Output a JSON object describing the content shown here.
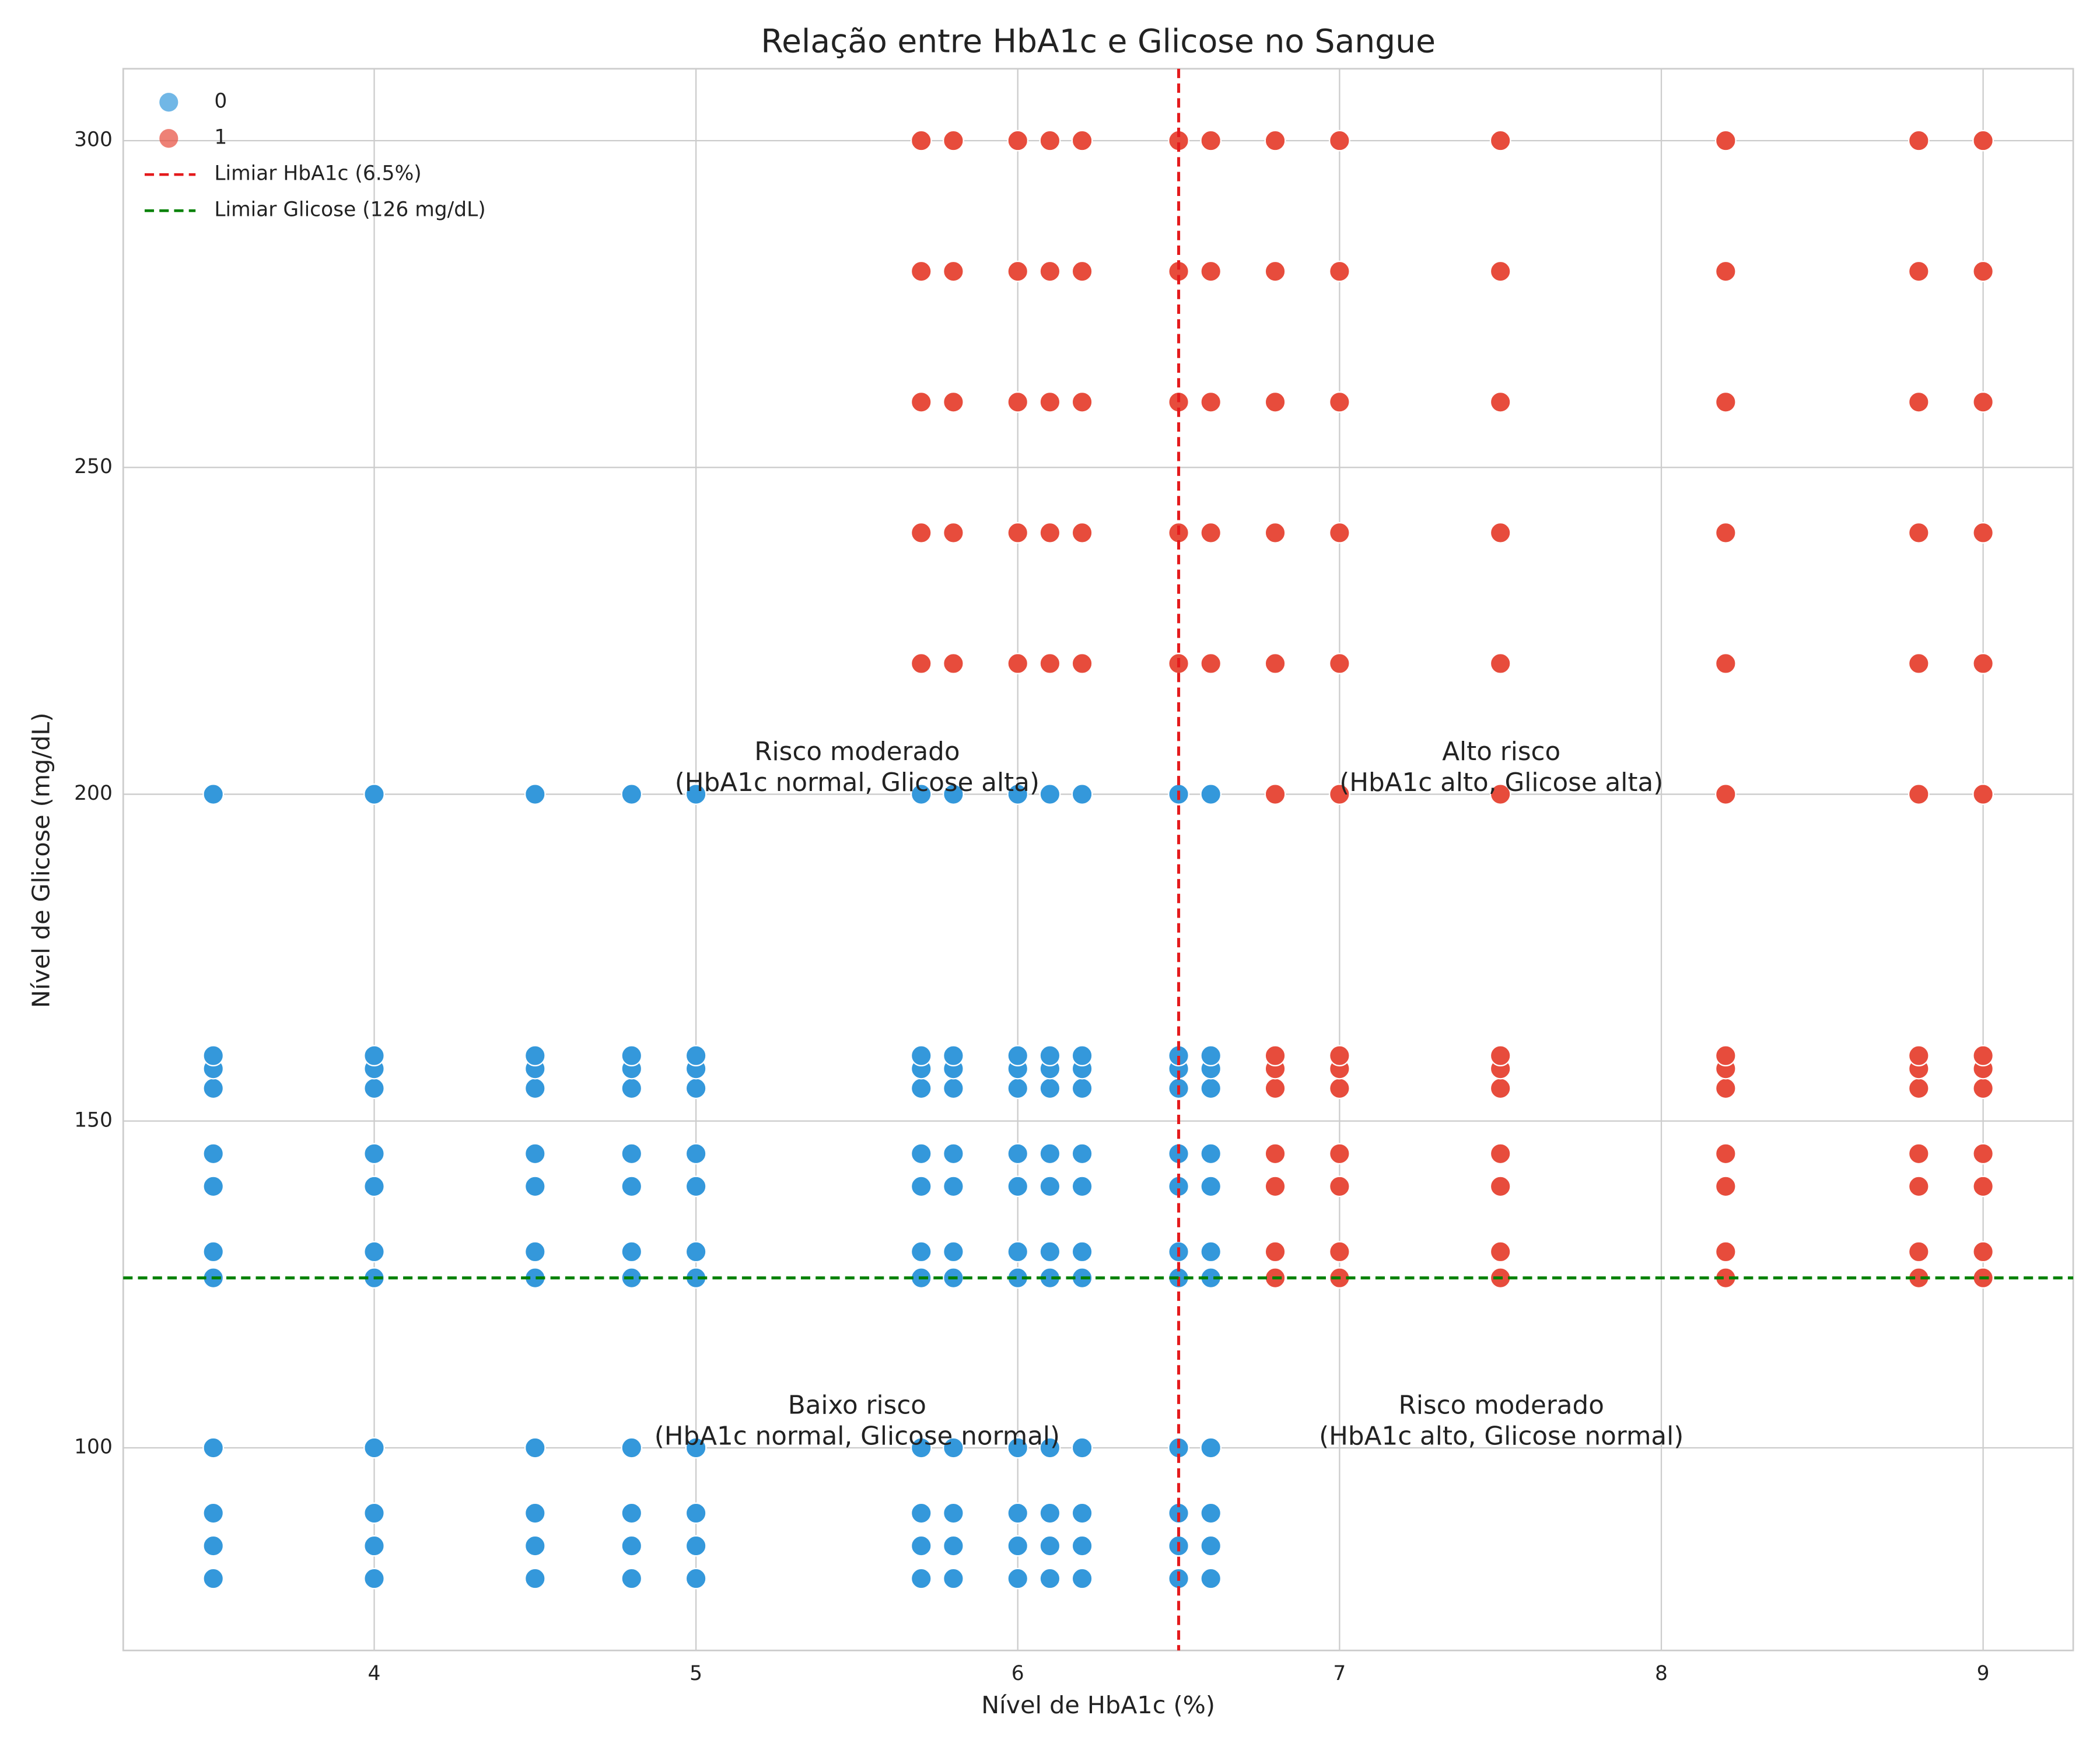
{
  "chart_data": {
    "type": "scatter",
    "title": "Relação entre HbA1c e Glicose no Sangue",
    "xlabel": "Nível de HbA1c (%)",
    "ylabel": "Nível de Glicose (mg/dL)",
    "xlim": [
      3.22,
      9.28
    ],
    "ylim": [
      69,
      311
    ],
    "xticks": [
      4,
      5,
      6,
      7,
      8,
      9
    ],
    "yticks": [
      100,
      150,
      200,
      250,
      300
    ],
    "grid": true,
    "legend": "upper left",
    "series": [
      {
        "name": "0",
        "color": "#3498db",
        "x": [
          3.5,
          4,
          4.5,
          4.8,
          5,
          5.7,
          5.8,
          6,
          6.1,
          6.2,
          6.5,
          6.6,
          3.5,
          4,
          4.5,
          4.8,
          5,
          5.7,
          5.8,
          6,
          6.1,
          6.2,
          6.5,
          6.6,
          3.5,
          4,
          4.5,
          4.8,
          5,
          5.7,
          5.8,
          6,
          6.1,
          6.2,
          6.5,
          6.6,
          3.5,
          4,
          4.5,
          4.8,
          5,
          5.7,
          5.8,
          6,
          6.1,
          6.2,
          6.5,
          6.6,
          3.5,
          4,
          4.5,
          4.8,
          5,
          5.7,
          5.8,
          6,
          6.1,
          6.2,
          6.5,
          6.6,
          3.5,
          4,
          4.5,
          4.8,
          5,
          5.7,
          5.8,
          6,
          6.1,
          6.2,
          6.5,
          6.6,
          3.5,
          4,
          4.5,
          4.8,
          5,
          5.7,
          5.8,
          6,
          6.1,
          6.2,
          6.5,
          6.6,
          3.5,
          4,
          4.5,
          4.8,
          5,
          5.7,
          5.8,
          6,
          6.1,
          6.2,
          6.5,
          6.6,
          3.5,
          4,
          4.5,
          4.8,
          5,
          5.7,
          5.8,
          6,
          6.1,
          6.2,
          6.5,
          6.6,
          3.5,
          4,
          4.5,
          4.8,
          5,
          5.7,
          5.8,
          6,
          6.1,
          6.2,
          6.5,
          6.6,
          3.5,
          4,
          4.5,
          4.8,
          5,
          5.7,
          5.8,
          6,
          6.1,
          6.2,
          6.5,
          6.6,
          3.5,
          4,
          4.5,
          4.8,
          5,
          5.7,
          5.8,
          6,
          6.1,
          6.2,
          6.5,
          6.6
        ],
        "values": [
          80,
          80,
          80,
          80,
          80,
          80,
          80,
          80,
          80,
          80,
          80,
          80,
          85,
          85,
          85,
          85,
          85,
          85,
          85,
          85,
          85,
          85,
          85,
          85,
          90,
          90,
          90,
          90,
          90,
          90,
          90,
          90,
          90,
          90,
          90,
          90,
          100,
          100,
          100,
          100,
          100,
          100,
          100,
          100,
          100,
          100,
          100,
          100,
          126,
          126,
          126,
          126,
          126,
          126,
          126,
          126,
          126,
          126,
          126,
          126,
          130,
          130,
          130,
          130,
          130,
          130,
          130,
          130,
          130,
          130,
          130,
          130,
          140,
          140,
          140,
          140,
          140,
          140,
          140,
          140,
          140,
          140,
          140,
          140,
          145,
          145,
          145,
          145,
          145,
          145,
          145,
          145,
          145,
          145,
          145,
          145,
          155,
          155,
          155,
          155,
          155,
          155,
          155,
          155,
          155,
          155,
          155,
          155,
          158,
          158,
          158,
          158,
          158,
          158,
          158,
          158,
          158,
          158,
          158,
          158,
          160,
          160,
          160,
          160,
          160,
          160,
          160,
          160,
          160,
          160,
          160,
          160,
          200,
          200,
          200,
          200,
          200,
          200,
          200,
          200,
          200,
          200,
          200,
          200
        ]
      },
      {
        "name": "1",
        "color": "#e74c3c",
        "x": [
          5.7,
          5.8,
          6,
          6.1,
          6.2,
          6.5,
          6.6,
          6.8,
          7,
          7.5,
          8.2,
          8.8,
          9,
          5.7,
          5.8,
          6,
          6.1,
          6.2,
          6.5,
          6.6,
          6.8,
          7,
          7.5,
          8.2,
          8.8,
          9,
          5.7,
          5.8,
          6,
          6.1,
          6.2,
          6.5,
          6.6,
          6.8,
          7,
          7.5,
          8.2,
          8.8,
          9,
          5.7,
          5.8,
          6,
          6.1,
          6.2,
          6.5,
          6.6,
          6.8,
          7,
          7.5,
          8.2,
          8.8,
          9,
          5.7,
          5.8,
          6,
          6.1,
          6.2,
          6.5,
          6.6,
          6.8,
          7,
          7.5,
          8.2,
          8.8,
          9,
          6.8,
          7,
          7.5,
          8.2,
          8.8,
          9,
          6.8,
          7,
          7.5,
          8.2,
          8.8,
          9,
          6.8,
          7,
          7.5,
          8.2,
          8.8,
          9,
          6.8,
          7,
          7.5,
          8.2,
          8.8,
          9,
          6.8,
          7,
          7.5,
          8.2,
          8.8,
          9,
          6.8,
          7,
          7.5,
          8.2,
          8.8,
          9,
          6.8,
          7,
          7.5,
          8.2,
          8.8,
          9,
          6.8,
          7,
          7.5,
          8.2,
          8.8,
          9
        ],
        "values": [
          220,
          220,
          220,
          220,
          220,
          220,
          220,
          220,
          220,
          220,
          220,
          220,
          220,
          240,
          240,
          240,
          240,
          240,
          240,
          240,
          240,
          240,
          240,
          240,
          240,
          240,
          260,
          260,
          260,
          260,
          260,
          260,
          260,
          260,
          260,
          260,
          260,
          260,
          260,
          280,
          280,
          280,
          280,
          280,
          280,
          280,
          280,
          280,
          280,
          280,
          280,
          280,
          300,
          300,
          300,
          300,
          300,
          300,
          300,
          300,
          300,
          300,
          300,
          300,
          300,
          126,
          126,
          126,
          126,
          126,
          126,
          130,
          130,
          130,
          130,
          130,
          130,
          140,
          140,
          140,
          140,
          140,
          140,
          145,
          145,
          145,
          145,
          145,
          145,
          155,
          155,
          155,
          155,
          155,
          155,
          158,
          158,
          158,
          158,
          158,
          158,
          160,
          160,
          160,
          160,
          160,
          160,
          200,
          200,
          200,
          200,
          200,
          200
        ]
      }
    ],
    "reference_lines": [
      {
        "name": "Limiar HbA1c (6.5%)",
        "axis": "x",
        "value": 6.5,
        "color": "#e41a1c"
      },
      {
        "name": "Limiar Glicose (126 mg/dL)",
        "axis": "y",
        "value": 126,
        "color": "#008000"
      }
    ],
    "annotations": [
      [
        "Risco moderado",
        "(HbA1c normal, Glicose alta)"
      ],
      [
        "Alto risco",
        "(HbA1c alto, Glicose alta)"
      ],
      [
        "Baixo risco",
        "(HbA1c normal, Glicose normal)"
      ],
      [
        "Risco moderado",
        "(HbA1c alto, Glicose normal)"
      ]
    ]
  }
}
